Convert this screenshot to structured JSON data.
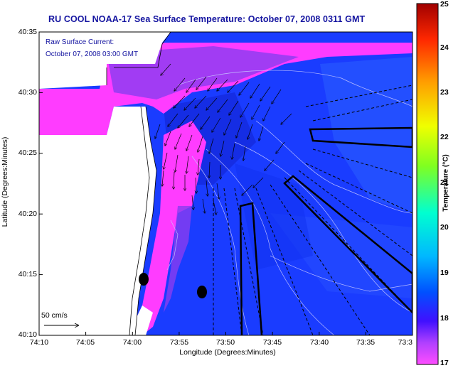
{
  "title": "RU COOL  NOAA-17  Sea Surface Temperature:  October 07, 2008 0311 GMT",
  "overlay": {
    "line1": "Raw Surface Current:",
    "line2": "October 07, 2008 03:00 GMT"
  },
  "axes": {
    "xlabel": "Longitude (Degrees:Minutes)",
    "ylabel": "Latitude (Degrees:Minutes)",
    "x_ticks": [
      "74:10",
      "74:05",
      "74:00",
      "73:55",
      "73:50",
      "73:45",
      "73:40",
      "73:35",
      "73:3"
    ],
    "y_ticks": [
      "40:35",
      "40:30",
      "40:25",
      "40:20",
      "40:15",
      "40:10"
    ]
  },
  "scale_bar": {
    "label": "50 cm/s"
  },
  "colorbar": {
    "label": "Temperature (°C)",
    "ticks": [
      "25",
      "24",
      "23",
      "22",
      "21",
      "20",
      "19",
      "18",
      "17"
    ]
  },
  "colors": {
    "title": "#1414a0",
    "warm_water": "#1a3cff",
    "cool_water": "#ff3cff",
    "land": "#ffffff"
  }
}
